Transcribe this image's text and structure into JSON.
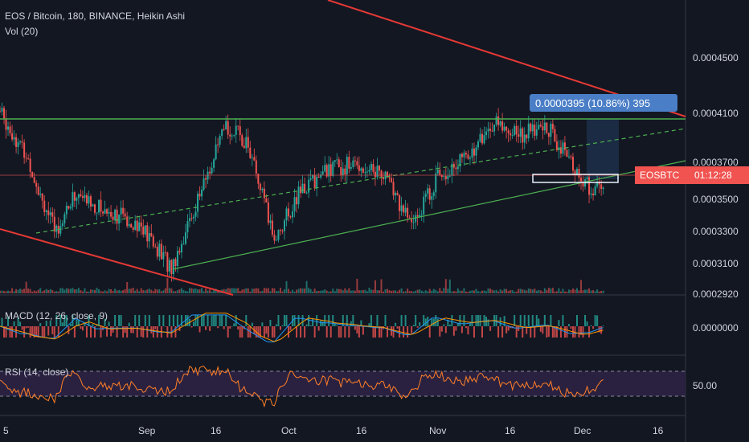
{
  "header": {
    "symbol_line": "EOS / Bitcoin, 180, BINANCE, Heikin Ashi",
    "volume_label": "Vol (20)",
    "macd_label": "MACD (12, 26, close, 9)",
    "rsi_label": "RSI (14, close)"
  },
  "price_tag": {
    "symbol": "EOSBTC",
    "countdown": "01:12:28"
  },
  "measure_label": "0.0000395 (10.86%) 395",
  "colors": {
    "background": "#131722",
    "up": "#26a69a",
    "down": "#ef5350",
    "resistance": "#4caf50",
    "downtrend": "#e53935",
    "price_tag_bg": "#f05350",
    "measure_bg": "#4a7ec6",
    "rsi_band": "#3b2a5e",
    "rsi_line": "#ff7f27",
    "macd_line": "#2196f3",
    "signal_line": "#ff9800"
  },
  "chart_data": [
    {
      "type": "candlestick",
      "title": "EOS / Bitcoin, 180, BINANCE, Heikin Ashi",
      "x_ticks": [
        "5",
        "Sep",
        "16",
        "Oct",
        "16",
        "Nov",
        "16",
        "Dec",
        "16"
      ],
      "y_ticks": [
        "0.0004500",
        "0.0004100",
        "0.0003700",
        "0.0003500",
        "0.0003300",
        "0.0003100",
        "0.0002920"
      ],
      "ylim": [
        0.000292,
        0.000455
      ],
      "grid": false,
      "series_points": [
        {
          "t": 0,
          "v": 0.000413
        },
        {
          "t": 0.04,
          "v": 0.000382
        },
        {
          "t": 0.08,
          "v": 0.000333
        },
        {
          "t": 0.11,
          "v": 0.000358
        },
        {
          "t": 0.14,
          "v": 0.00035
        },
        {
          "t": 0.2,
          "v": 0.000339
        },
        {
          "t": 0.25,
          "v": 0.000309
        },
        {
          "t": 0.29,
          "v": 0.000356
        },
        {
          "t": 0.33,
          "v": 0.000403
        },
        {
          "t": 0.36,
          "v": 0.000393
        },
        {
          "t": 0.4,
          "v": 0.000328
        },
        {
          "t": 0.44,
          "v": 0.000361
        },
        {
          "t": 0.48,
          "v": 0.000375
        },
        {
          "t": 0.52,
          "v": 0.000378
        },
        {
          "t": 0.56,
          "v": 0.000372
        },
        {
          "t": 0.6,
          "v": 0.000337
        },
        {
          "t": 0.64,
          "v": 0.000371
        },
        {
          "t": 0.68,
          "v": 0.000382
        },
        {
          "t": 0.72,
          "v": 0.000405
        },
        {
          "t": 0.76,
          "v": 0.000398
        },
        {
          "t": 0.8,
          "v": 0.000402
        },
        {
          "t": 0.84,
          "v": 0.000373
        },
        {
          "t": 0.86,
          "v": 0.000361
        },
        {
          "t": 0.88,
          "v": 0.000363
        }
      ],
      "last_price": 0.000364
    },
    {
      "type": "line",
      "title": "MACD (12, 26, close, 9)",
      "y_ticks": [
        "0.0000000"
      ]
    },
    {
      "type": "line",
      "title": "RSI (14, close)",
      "y_ticks": [
        "50.00"
      ],
      "bands": [
        30,
        70
      ]
    }
  ]
}
